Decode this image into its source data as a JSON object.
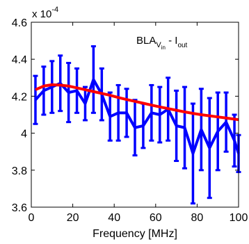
{
  "chart_data": {
    "type": "line",
    "xlabel": "Frequency [MHz]",
    "ylabel": "",
    "xlim": [
      0,
      100
    ],
    "ylim": [
      3.6,
      4.6
    ],
    "y_multiplier": "x 10",
    "y_multiplier_exponent": "-4",
    "x_ticks": [
      0,
      20,
      40,
      60,
      80,
      100
    ],
    "y_ticks": [
      3.6,
      3.8,
      4,
      4.2,
      4.4,
      4.6
    ],
    "x_tick_labels": [
      "0",
      "20",
      "40",
      "60",
      "80",
      "100"
    ],
    "y_tick_labels": [
      "3.6",
      "3.8",
      "4",
      "4.2",
      "4.4",
      "4.6"
    ],
    "grid": false,
    "annotation": {
      "main": "BLA",
      "sub_1": "V",
      "sub_1_sub": "in",
      "separator": " - I",
      "sub_2": "out"
    },
    "series": [
      {
        "color": "#0000ff",
        "style": "errorbar",
        "x": [
          2,
          6,
          10,
          14,
          18,
          22,
          26,
          30,
          34,
          38,
          42,
          46,
          50,
          54,
          58,
          62,
          66,
          70,
          74,
          78,
          82,
          86,
          90,
          94,
          98,
          100
        ],
        "y": [
          4.18,
          4.23,
          4.25,
          4.27,
          4.22,
          4.23,
          4.16,
          4.29,
          4.21,
          4.09,
          4.11,
          4.11,
          4.03,
          4.04,
          4.11,
          4.1,
          4.13,
          4.04,
          4.03,
          3.89,
          4.02,
          3.92,
          4.01,
          4.06,
          3.96,
          3.89
        ],
        "err": [
          0.13,
          0.13,
          0.14,
          0.15,
          0.16,
          0.12,
          0.09,
          0.18,
          0.14,
          0.13,
          0.15,
          0.13,
          0.15,
          0.12,
          0.15,
          0.15,
          0.17,
          0.19,
          0.22,
          0.27,
          0.22,
          0.27,
          0.21,
          0.16,
          0.14,
          0.1
        ]
      },
      {
        "color": "#ff0000",
        "style": "line",
        "x": [
          2,
          6,
          10,
          14,
          18,
          22,
          26,
          30,
          34,
          38,
          42,
          46,
          50,
          54,
          58,
          62,
          66,
          70,
          74,
          78,
          82,
          86,
          90,
          94,
          98,
          100
        ],
        "y": [
          4.235,
          4.255,
          4.262,
          4.26,
          4.255,
          4.245,
          4.235,
          4.225,
          4.215,
          4.205,
          4.193,
          4.182,
          4.172,
          4.162,
          4.152,
          4.142,
          4.133,
          4.124,
          4.115,
          4.107,
          4.1,
          4.094,
          4.088,
          4.082,
          4.076,
          4.073
        ]
      }
    ]
  }
}
